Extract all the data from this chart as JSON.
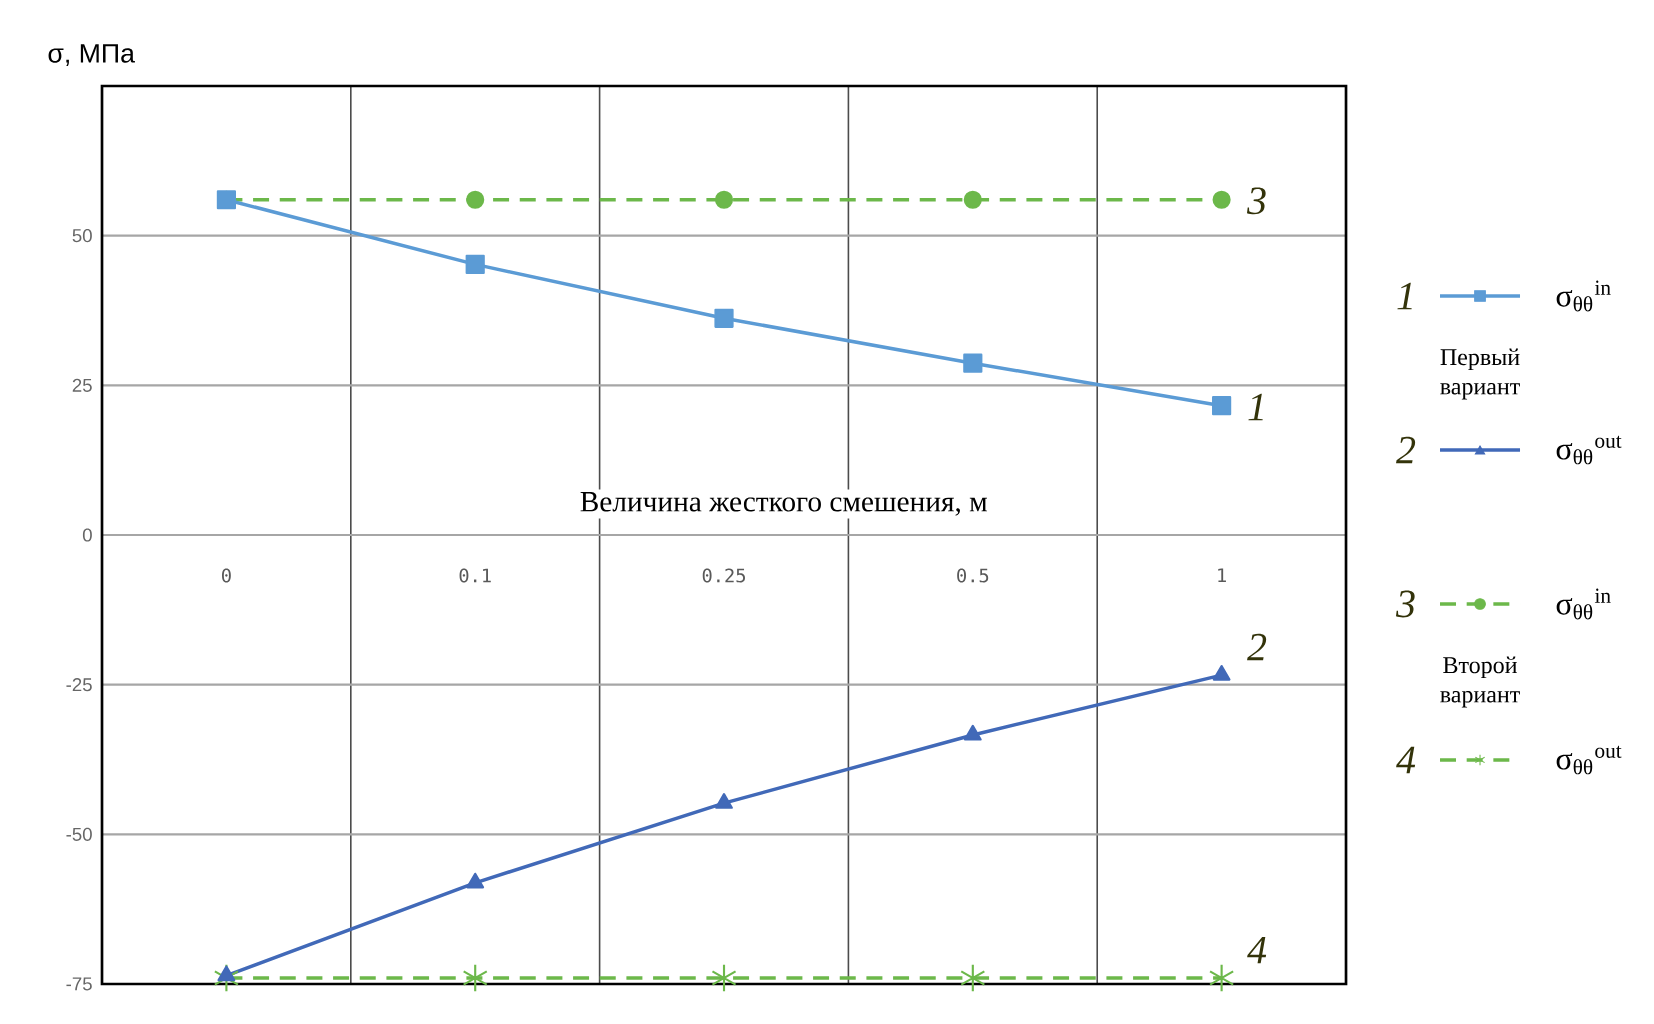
{
  "chart_data": {
    "type": "line",
    "ylabel": "σ, МПа",
    "xlabel": "Величина жесткого смешения, м",
    "categories": [
      "0",
      "0.1",
      "0.25",
      "0.5",
      "1"
    ],
    "ylim": [
      -75,
      75
    ],
    "yticks": [
      -75,
      -50,
      -25,
      0,
      25,
      50
    ],
    "grid": true,
    "legend": "right",
    "series": [
      {
        "name": "σ$_{θθ}$$^{in}$",
        "color": "#5b9bd5",
        "marker": "square",
        "line_style": "solid",
        "values": [
          56,
          45.2,
          36.2,
          28.7,
          21.6
        ]
      },
      {
        "name": "σ$_{θθ}$$^{out}$",
        "color": "#4169b8",
        "marker": "triangle",
        "line_style": "solid",
        "values": [
          -73.6,
          -58.1,
          -44.8,
          -33.4,
          -23.4
        ]
      },
      {
        "name": "σ$_{θθ}$$^{in}$",
        "color": "#6cb84a",
        "marker": "circle",
        "line_style": "dashed",
        "values": [
          56,
          56,
          56,
          56,
          56
        ]
      },
      {
        "name": "σ$_{θθ}$$^{out}$",
        "color": "#6cb84a",
        "marker": "cross",
        "line_style": "dashed",
        "values": [
          -74,
          -74,
          -74,
          -74,
          -74
        ]
      }
    ],
    "annotations": [
      {
        "text": "3",
        "x": "1",
        "y": 56
      },
      {
        "text": "1",
        "x": "1",
        "y": 21.6
      },
      {
        "text": "2",
        "x": "1",
        "y": -23.4
      },
      {
        "text": "4",
        "x": "1",
        "y": -74
      },
      "Первый вариант",
      "Второй вариант",
      "1",
      "2",
      "3",
      "4"
    ]
  }
}
